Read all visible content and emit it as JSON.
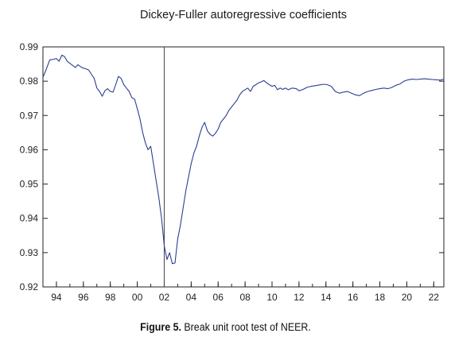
{
  "chart_data": {
    "type": "line",
    "title": "Dickey-Fuller autoregressive coefficients",
    "xlabel": "",
    "ylabel": "",
    "xlim": [
      1993.0,
      2022.75
    ],
    "ylim": [
      0.92,
      0.99
    ],
    "yticks": [
      "0.99",
      "0.98",
      "0.97",
      "0.96",
      "0.95",
      "0.94",
      "0.93",
      "0.92"
    ],
    "xticks": [
      {
        "v": 1994,
        "label": "94"
      },
      {
        "v": 1996,
        "label": "96"
      },
      {
        "v": 1998,
        "label": "98"
      },
      {
        "v": 2000,
        "label": "00"
      },
      {
        "v": 2002,
        "label": "02"
      },
      {
        "v": 2004,
        "label": "04"
      },
      {
        "v": 2006,
        "label": "06"
      },
      {
        "v": 2008,
        "label": "08"
      },
      {
        "v": 2010,
        "label": "10"
      },
      {
        "v": 2012,
        "label": "12"
      },
      {
        "v": 2014,
        "label": "14"
      },
      {
        "v": 2016,
        "label": "16"
      },
      {
        "v": 2018,
        "label": "18"
      },
      {
        "v": 2020,
        "label": "20"
      },
      {
        "v": 2022,
        "label": "22"
      }
    ],
    "break_line": 2002.0,
    "series": [
      {
        "color": "#2b3f8f",
        "x": [
          1993.0,
          1993.2,
          1993.5,
          1993.8,
          1994.0,
          1994.2,
          1994.4,
          1994.6,
          1994.8,
          1995.0,
          1995.2,
          1995.4,
          1995.6,
          1995.8,
          1996.0,
          1996.2,
          1996.4,
          1996.6,
          1996.8,
          1997.0,
          1997.2,
          1997.4,
          1997.6,
          1997.8,
          1998.0,
          1998.2,
          1998.4,
          1998.6,
          1998.8,
          1999.0,
          1999.2,
          1999.4,
          1999.6,
          1999.8,
          2000.0,
          2000.2,
          2000.4,
          2000.6,
          2000.8,
          2001.0,
          2001.2,
          2001.4,
          2001.6,
          2001.8,
          2002.0,
          2002.2,
          2002.4,
          2002.6,
          2002.8,
          2003.0,
          2003.2,
          2003.4,
          2003.6,
          2003.8,
          2004.0,
          2004.2,
          2004.4,
          2004.6,
          2004.8,
          2005.0,
          2005.2,
          2005.4,
          2005.6,
          2005.8,
          2006.0,
          2006.2,
          2006.4,
          2006.6,
          2006.8,
          2007.0,
          2007.2,
          2007.4,
          2007.6,
          2007.8,
          2008.0,
          2008.2,
          2008.4,
          2008.6,
          2008.8,
          2009.0,
          2009.2,
          2009.4,
          2009.6,
          2009.8,
          2010.0,
          2010.2,
          2010.4,
          2010.6,
          2010.8,
          2011.0,
          2011.2,
          2011.5,
          2011.8,
          2012.0,
          2012.3,
          2012.6,
          2012.9,
          2013.2,
          2013.5,
          2013.8,
          2014.1,
          2014.4,
          2014.7,
          2015.0,
          2015.3,
          2015.6,
          2015.9,
          2016.2,
          2016.5,
          2016.8,
          2017.1,
          2017.4,
          2017.7,
          2018.0,
          2018.3,
          2018.6,
          2018.9,
          2019.2,
          2019.5,
          2019.8,
          2020.1,
          2020.4,
          2020.7,
          2021.0,
          2021.3,
          2021.6,
          2021.9,
          2022.2,
          2022.5,
          2022.75
        ],
        "y": [
          0.9812,
          0.983,
          0.9862,
          0.9864,
          0.9866,
          0.9858,
          0.9876,
          0.9872,
          0.9858,
          0.9852,
          0.9846,
          0.984,
          0.9848,
          0.9842,
          0.9838,
          0.9836,
          0.9832,
          0.982,
          0.9808,
          0.978,
          0.977,
          0.9756,
          0.9772,
          0.9778,
          0.977,
          0.9768,
          0.979,
          0.9814,
          0.9808,
          0.979,
          0.978,
          0.977,
          0.9752,
          0.9748,
          0.972,
          0.969,
          0.965,
          0.962,
          0.96,
          0.961,
          0.956,
          0.951,
          0.946,
          0.94,
          0.932,
          0.928,
          0.93,
          0.9268,
          0.927,
          0.934,
          0.938,
          0.943,
          0.948,
          0.952,
          0.956,
          0.959,
          0.961,
          0.964,
          0.9665,
          0.968,
          0.9655,
          0.9645,
          0.964,
          0.9648,
          0.966,
          0.968,
          0.969,
          0.97,
          0.9715,
          0.9725,
          0.9735,
          0.9745,
          0.976,
          0.977,
          0.9775,
          0.978,
          0.977,
          0.9785,
          0.979,
          0.9795,
          0.9798,
          0.9802,
          0.9795,
          0.979,
          0.9785,
          0.9788,
          0.9775,
          0.978,
          0.9776,
          0.978,
          0.9775,
          0.978,
          0.9778,
          0.9772,
          0.9776,
          0.9782,
          0.9785,
          0.9787,
          0.9789,
          0.9791,
          0.979,
          0.9785,
          0.977,
          0.9765,
          0.9768,
          0.977,
          0.9765,
          0.976,
          0.9758,
          0.9765,
          0.977,
          0.9773,
          0.9776,
          0.9778,
          0.978,
          0.9778,
          0.9782,
          0.9788,
          0.9792,
          0.98,
          0.9804,
          0.9806,
          0.9805,
          0.9806,
          0.9807,
          0.9806,
          0.9805,
          0.9804,
          0.9803,
          0.9806
        ]
      }
    ]
  },
  "caption": {
    "label": "Figure 5.",
    "text": " Break unit root test of NEER."
  }
}
